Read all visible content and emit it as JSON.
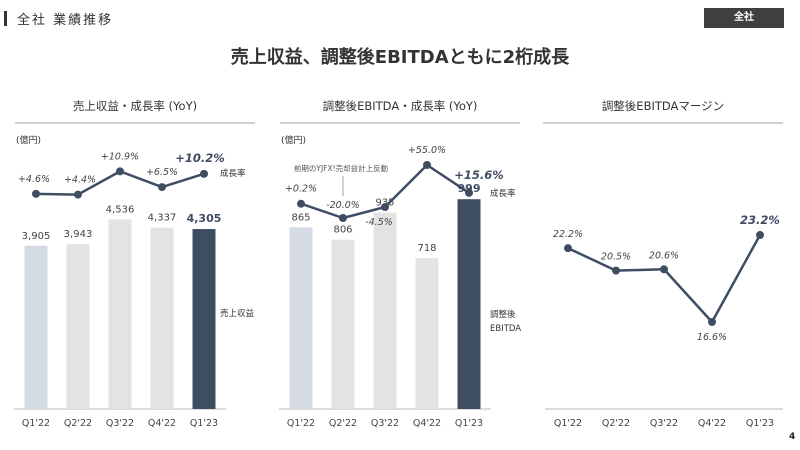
{
  "header": {
    "section_title": "全社 業績推移",
    "badge": "全社",
    "main_title": "売上収益、調整後EBITDAともに2桁成長",
    "page_number": "4"
  },
  "colors": {
    "navy": "#3f4d63",
    "light_blue": "#d5dbe5",
    "light_gray": "#e3e3e3",
    "line": "#3f4d63",
    "text": "#333333"
  },
  "chart_data": [
    {
      "type": "bar",
      "title": "売上収益・成長率 (YoY)",
      "unit_label": "(億円)",
      "categories": [
        "Q1'22",
        "Q2'22",
        "Q3'22",
        "Q4'22",
        "Q1'23"
      ],
      "values": [
        3905,
        3943,
        4536,
        4337,
        4305
      ],
      "value_labels": [
        "3,905",
        "3,943",
        "4,536",
        "4,337",
        "4,305"
      ],
      "bar_series_label": "売上収益",
      "ylim": [
        0,
        5000
      ],
      "growth": {
        "type": "line",
        "label": "成長率",
        "values": [
          4.6,
          4.4,
          10.9,
          6.5,
          10.2
        ],
        "value_labels": [
          "+4.6%",
          "+4.4%",
          "+10.9%",
          "+6.5%",
          "+10.2%"
        ]
      }
    },
    {
      "type": "bar",
      "title": "調整後EBITDA・成長率 (YoY)",
      "unit_label": "(億円)",
      "categories": [
        "Q1'22",
        "Q2'22",
        "Q3'22",
        "Q4'22",
        "Q1'23"
      ],
      "values": [
        865,
        806,
        935,
        718,
        999
      ],
      "value_labels": [
        "865",
        "806",
        "935",
        "718",
        "999"
      ],
      "bar_series_label_line1": "調整後",
      "bar_series_label_line2": "EBITDA",
      "ylim": [
        0,
        1100
      ],
      "annotation": "前期のYJFX!売却益計上反動",
      "growth": {
        "type": "line",
        "label": "成長率",
        "values": [
          0.2,
          -20.0,
          -4.5,
          55.0,
          15.6
        ],
        "value_labels": [
          "+0.2%",
          "-20.0%",
          "-4.5%",
          "+55.0%",
          "+15.6%"
        ]
      }
    },
    {
      "type": "line",
      "title": "調整後EBITDAマージン",
      "categories": [
        "Q1'22",
        "Q2'22",
        "Q3'22",
        "Q4'22",
        "Q1'23"
      ],
      "values": [
        22.2,
        20.5,
        20.6,
        16.6,
        23.2
      ],
      "value_labels": [
        "22.2%",
        "20.5%",
        "20.6%",
        "16.6%",
        "23.2%"
      ],
      "ylim": [
        10,
        30
      ]
    }
  ]
}
